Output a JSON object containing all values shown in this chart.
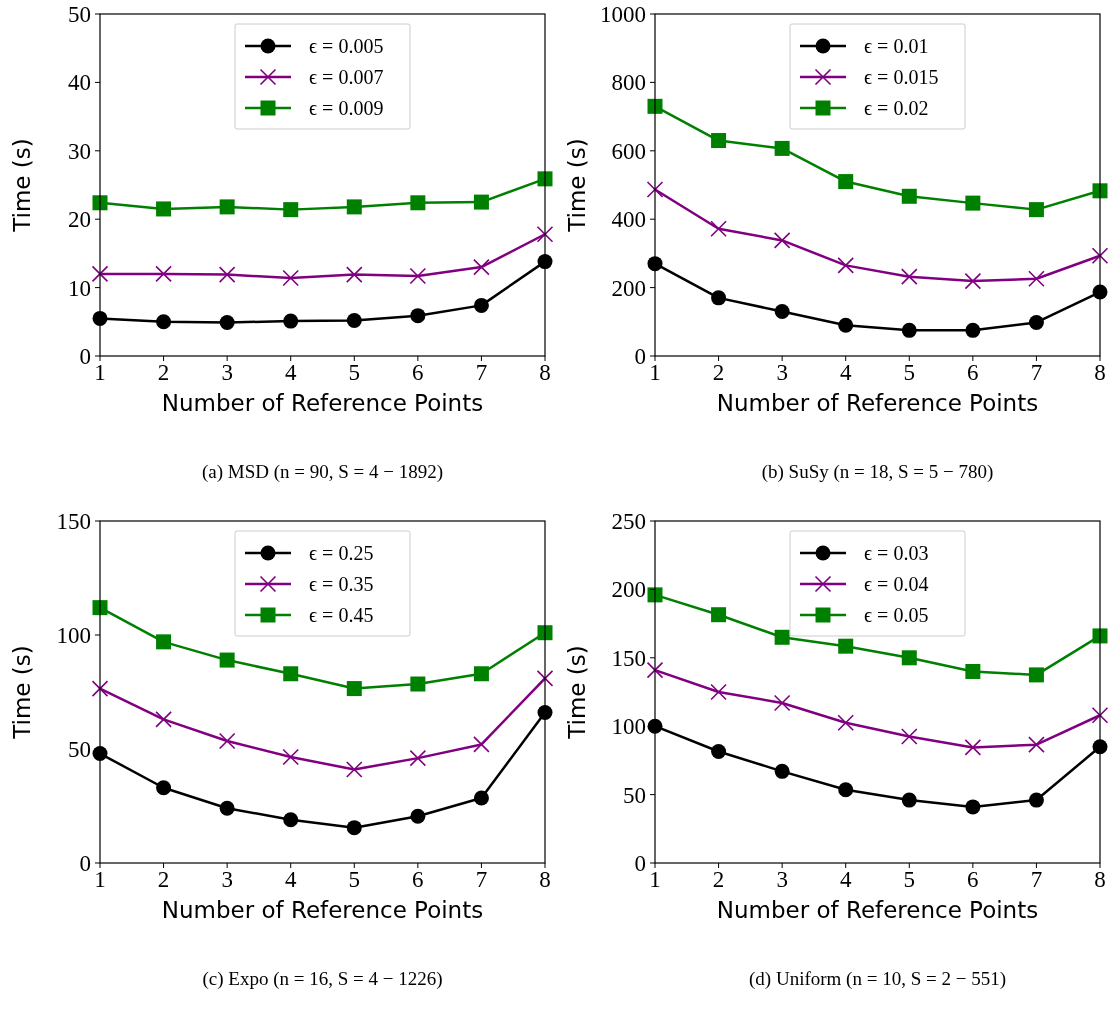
{
  "chart_data": [
    {
      "type": "line",
      "title": "(a) MSD (n = 90, S = 4 − 1892)",
      "xlabel": "Number of Reference Points",
      "ylabel": "Time (s)",
      "x": [
        1,
        2,
        3,
        4,
        5,
        6,
        7,
        8
      ],
      "xlim": [
        1,
        8
      ],
      "xticks": [
        1,
        2,
        3,
        4,
        5,
        6,
        7,
        8
      ],
      "ylim": [
        0,
        50
      ],
      "yticks": [
        0,
        10,
        20,
        30,
        40,
        50
      ],
      "grid": false,
      "legend": "top",
      "line_style": "solid",
      "series": [
        {
          "name": "ϵ = 0.005",
          "color": "#000000",
          "marker": "circle",
          "values": [
            5.5,
            5.0,
            4.9,
            5.1,
            5.2,
            5.9,
            7.4,
            13.8
          ]
        },
        {
          "name": "ϵ = 0.007",
          "color": "#800080",
          "marker": "cross",
          "values": [
            12,
            12,
            11.9,
            11.4,
            11.9,
            11.7,
            13,
            17.8
          ]
        },
        {
          "name": "ϵ = 0.009",
          "color": "#008000",
          "marker": "square",
          "values": [
            22.4,
            21.5,
            21.8,
            21.4,
            21.8,
            22.4,
            22.5,
            25.9
          ]
        }
      ]
    },
    {
      "type": "line",
      "title": "(b) SuSy (n = 18, S = 5 − 780)",
      "xlabel": "Number of Reference Points",
      "ylabel": "Time (s)",
      "x": [
        1,
        2,
        3,
        4,
        5,
        6,
        7,
        8
      ],
      "xlim": [
        1,
        8
      ],
      "xticks": [
        1,
        2,
        3,
        4,
        5,
        6,
        7,
        8
      ],
      "ylim": [
        0,
        1000
      ],
      "yticks": [
        0,
        200,
        400,
        600,
        800,
        1000
      ],
      "grid": false,
      "legend": "top",
      "line_style": "solid",
      "series": [
        {
          "name": "ϵ = 0.01",
          "color": "#000000",
          "marker": "circle",
          "values": [
            270,
            170,
            130,
            90,
            75,
            75,
            98,
            187
          ]
        },
        {
          "name": "ϵ = 0.015",
          "color": "#800080",
          "marker": "cross",
          "values": [
            487,
            372,
            338,
            265,
            232,
            219,
            226,
            293
          ]
        },
        {
          "name": "ϵ = 0.02",
          "color": "#008000",
          "marker": "square",
          "values": [
            730,
            630,
            607,
            510,
            467,
            447,
            428,
            483
          ]
        }
      ]
    },
    {
      "type": "line",
      "title": "(c) Expo (n = 16, S = 4 − 1226)",
      "xlabel": "Number of Reference Points",
      "ylabel": "Time (s)",
      "x": [
        1,
        2,
        3,
        4,
        5,
        6,
        7,
        8
      ],
      "xlim": [
        1,
        8
      ],
      "xticks": [
        1,
        2,
        3,
        4,
        5,
        6,
        7,
        8
      ],
      "ylim": [
        0,
        150
      ],
      "yticks": [
        0,
        50,
        100,
        150
      ],
      "grid": false,
      "legend": "top",
      "line_style": "solid",
      "series": [
        {
          "name": "ϵ = 0.25",
          "color": "#000000",
          "marker": "circle",
          "values": [
            48,
            33,
            24,
            19,
            15.5,
            20.5,
            28.5,
            66
          ]
        },
        {
          "name": "ϵ = 0.35",
          "color": "#800080",
          "marker": "cross",
          "values": [
            76.5,
            63,
            53.5,
            46.5,
            41,
            46,
            52,
            81
          ]
        },
        {
          "name": "ϵ = 0.45",
          "color": "#008000",
          "marker": "square",
          "values": [
            112,
            97,
            89,
            83,
            76.5,
            78.5,
            83,
            101
          ]
        }
      ]
    },
    {
      "type": "line",
      "title": "(d) Uniform (n = 10, S = 2 − 551)",
      "xlabel": "Number of Reference Points",
      "ylabel": "Time (s)",
      "x": [
        1,
        2,
        3,
        4,
        5,
        6,
        7,
        8
      ],
      "xlim": [
        1,
        8
      ],
      "xticks": [
        1,
        2,
        3,
        4,
        5,
        6,
        7,
        8
      ],
      "ylim": [
        0,
        250
      ],
      "yticks": [
        0,
        50,
        100,
        150,
        200,
        250
      ],
      "grid": false,
      "legend": "top",
      "line_style": "solid",
      "series": [
        {
          "name": "ϵ = 0.03",
          "color": "#000000",
          "marker": "circle",
          "values": [
            100,
            81.5,
            67,
            53.5,
            46,
            41,
            46,
            85
          ]
        },
        {
          "name": "ϵ = 0.04",
          "color": "#800080",
          "marker": "cross",
          "values": [
            141,
            125,
            117,
            102.5,
            92.5,
            84.5,
            86.5,
            108
          ]
        },
        {
          "name": "ϵ = 0.05",
          "color": "#008000",
          "marker": "square",
          "values": [
            196,
            181.5,
            165,
            158.5,
            150,
            140,
            137.5,
            166
          ]
        }
      ]
    }
  ]
}
